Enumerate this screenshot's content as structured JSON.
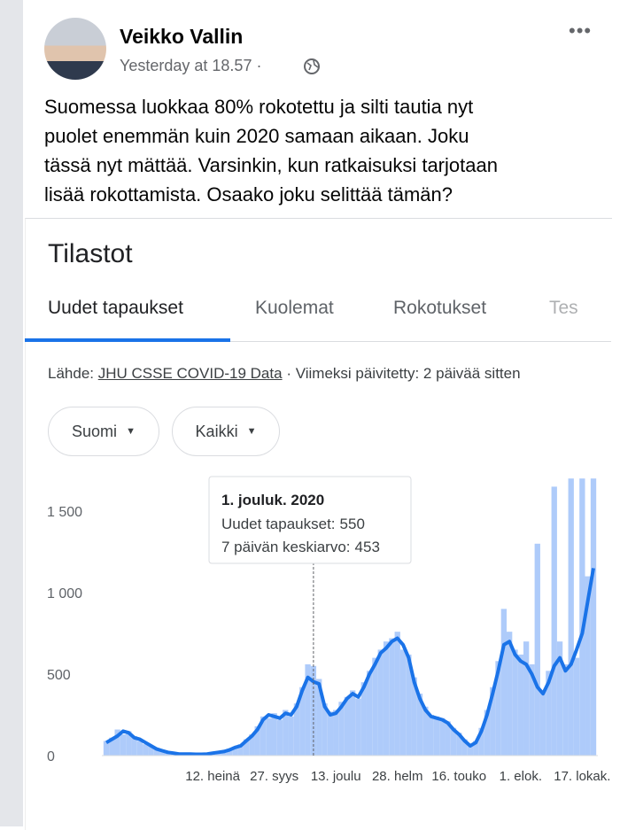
{
  "post": {
    "author": "Veikko Vallin",
    "time": "Yesterday at 18.57 ·",
    "text": [
      "Suomessa luokkaa 80% rokotettu ja silti tautia nyt",
      "puolet enemmän kuin 2020 samaan aikaan. Joku",
      "tässä nyt mättää. Varsinkin, kun ratkaisuksi tarjotaan",
      "lisää rokottamista. Osaako joku selittää tämän?"
    ]
  },
  "card": {
    "title": "Tilastot",
    "tabs": [
      "Uudet tapaukset",
      "Kuolemat",
      "Rokotukset",
      "Tes"
    ],
    "source": {
      "prefix": "Lähde:",
      "link": "JHU CSSE COVID-19 Data",
      "suffix": "· Viimeksi päivitetty: 2 päivää sitten"
    },
    "filters": [
      "Suomi",
      "Kaikki"
    ]
  },
  "tooltip": {
    "date": "1. jouluk. 2020",
    "rows": [
      {
        "label": "Uudet tapaukset:",
        "value": 550
      },
      {
        "label": "7 päivän keskiarvo:",
        "value": 453
      }
    ]
  },
  "chart_data": {
    "type": "bar",
    "categories": [
      null,
      null,
      null,
      null,
      null,
      null,
      null,
      null,
      null,
      null,
      null,
      null,
      null,
      null,
      null,
      null,
      null,
      null,
      null,
      "12. heinä",
      null,
      null,
      null,
      null,
      null,
      null,
      null,
      null,
      null,
      null,
      "27. syys",
      null,
      null,
      null,
      null,
      null,
      null,
      null,
      null,
      null,
      null,
      "13. joulu",
      null,
      null,
      null,
      null,
      null,
      null,
      null,
      null,
      null,
      null,
      "28. helm",
      null,
      null,
      null,
      null,
      null,
      null,
      null,
      null,
      null,
      null,
      "16. touko",
      null,
      null,
      null,
      null,
      null,
      null,
      null,
      null,
      null,
      null,
      "1. elok.",
      null,
      null,
      null,
      null,
      null,
      null,
      null,
      null,
      null,
      null,
      "17. lokak.",
      null,
      null
    ],
    "series": [
      {
        "type": "bar",
        "color": "#aecbfa",
        "values": [
          90,
          110,
          160,
          130,
          150,
          120,
          90,
          70,
          60,
          45,
          30,
          25,
          18,
          12,
          10,
          12,
          9,
          8,
          12,
          18,
          22,
          30,
          40,
          55,
          70,
          100,
          130,
          180,
          240,
          230,
          260,
          220,
          280,
          240,
          320,
          420,
          560,
          550,
          470,
          320,
          270,
          280,
          330,
          360,
          400,
          350,
          450,
          520,
          600,
          650,
          700,
          720,
          760,
          650,
          620,
          480,
          380,
          300,
          250,
          240,
          230,
          210,
          170,
          140,
          100,
          70,
          90,
          170,
          280,
          420,
          580,
          900,
          760,
          650,
          620,
          700,
          560,
          1300,
          400,
          520,
          1650,
          700,
          560,
          1700,
          600,
          1700,
          1100,
          1700
        ]
      },
      {
        "type": "line",
        "color": "#1a73e8",
        "values": [
          80,
          100,
          120,
          150,
          140,
          110,
          100,
          80,
          60,
          40,
          30,
          20,
          15,
          10,
          10,
          10,
          8,
          8,
          10,
          15,
          20,
          25,
          35,
          50,
          60,
          90,
          120,
          160,
          220,
          250,
          240,
          230,
          260,
          250,
          300,
          400,
          480,
          453,
          440,
          300,
          250,
          260,
          300,
          350,
          380,
          360,
          420,
          500,
          560,
          630,
          660,
          700,
          720,
          680,
          600,
          450,
          350,
          280,
          240,
          230,
          220,
          200,
          160,
          130,
          90,
          60,
          80,
          150,
          250,
          380,
          520,
          680,
          700,
          620,
          580,
          560,
          500,
          420,
          380,
          450,
          550,
          600,
          520,
          560,
          650,
          750,
          950,
          1150
        ]
      }
    ],
    "ylim": [
      0,
      1700
    ],
    "yticks": [
      0,
      500,
      {
        "value": 1000,
        "label": "1 000"
      },
      {
        "value": 1500,
        "label": "1 500"
      }
    ],
    "grid": false
  }
}
